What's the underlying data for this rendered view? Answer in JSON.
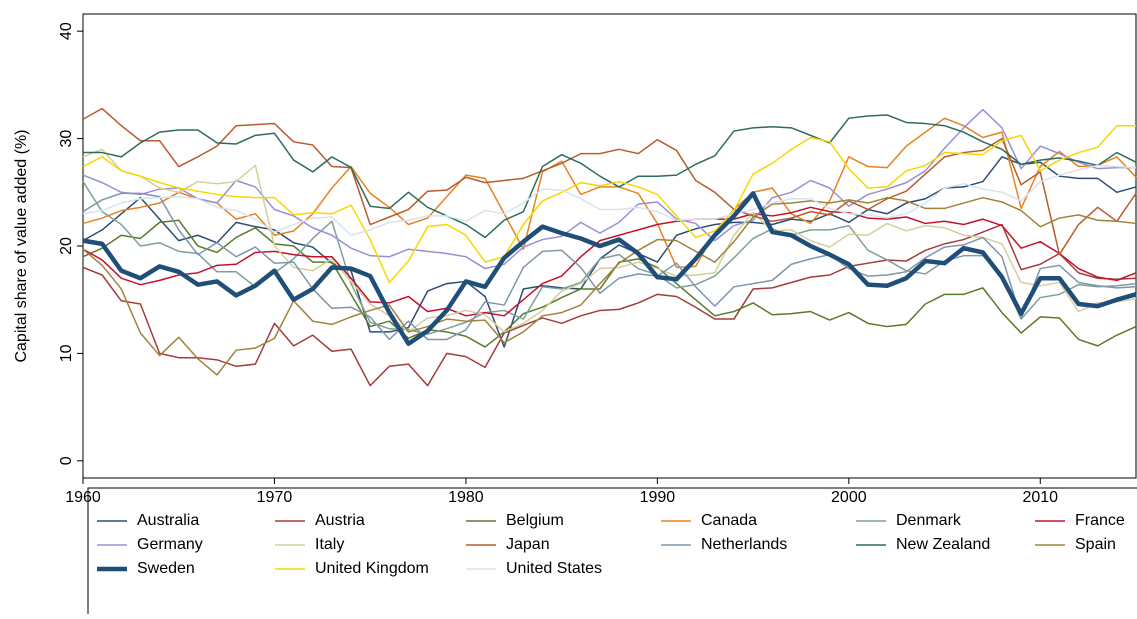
{
  "chart_data": {
    "type": "line",
    "y_label": "Capital share of value added (%)",
    "x": [
      1960,
      1961,
      1962,
      1963,
      1964,
      1965,
      1966,
      1967,
      1968,
      1969,
      1970,
      1971,
      1972,
      1973,
      1974,
      1975,
      1976,
      1977,
      1978,
      1979,
      1980,
      1981,
      1982,
      1983,
      1984,
      1985,
      1986,
      1987,
      1988,
      1989,
      1990,
      1991,
      1992,
      1993,
      1994,
      1995,
      1996,
      1997,
      1998,
      1999,
      2000,
      2001,
      2002,
      2003,
      2004,
      2005,
      2006,
      2007,
      2008,
      2009,
      2010,
      2011,
      2012,
      2013,
      2014,
      2015
    ],
    "xlim": [
      1960,
      2015
    ],
    "xticks": [
      1960,
      1970,
      1980,
      1990,
      2000,
      2010
    ],
    "ylim": [
      -1.6,
      41.6
    ],
    "yticks": [
      0,
      10,
      20,
      30,
      40
    ],
    "legend": "bottom",
    "series": [
      {
        "name": "Australia",
        "color": "#2a4d75",
        "width": 1.5,
        "values": [
          20.5,
          21.5,
          23.0,
          24.5,
          22.5,
          20.5,
          21.0,
          20.3,
          22.2,
          21.8,
          21.5,
          20.3,
          19.9,
          18.4,
          17.7,
          12.0,
          12.0,
          12.4,
          15.8,
          16.5,
          16.7,
          15.3,
          10.6,
          16.0,
          16.3,
          16.1,
          16.0,
          18.8,
          20.1,
          19.3,
          18.5,
          21.0,
          21.6,
          22.0,
          22.2,
          22.2,
          22.0,
          22.5,
          22.3,
          23.0,
          22.2,
          23.4,
          23.0,
          24.0,
          24.4,
          25.4,
          25.5,
          26.0,
          28.3,
          27.6,
          27.8,
          26.5,
          26.3,
          26.3,
          25.0,
          25.5
        ]
      },
      {
        "name": "Austria",
        "color": "#a53c3c",
        "width": 1.5,
        "values": [
          18.0,
          17.3,
          14.9,
          14.6,
          10.0,
          9.6,
          9.6,
          9.4,
          8.8,
          9.0,
          12.8,
          10.7,
          11.7,
          10.2,
          10.4,
          7.0,
          8.8,
          9.0,
          7.0,
          10.0,
          9.7,
          8.7,
          11.9,
          12.6,
          13.3,
          12.8,
          13.5,
          14.0,
          14.1,
          14.7,
          15.5,
          15.3,
          14.3,
          13.2,
          13.2,
          16.0,
          16.1,
          16.6,
          17.1,
          17.3,
          18.1,
          18.4,
          18.7,
          18.6,
          19.6,
          20.2,
          20.6,
          21.3,
          22.0,
          17.8,
          18.3,
          19.3,
          17.5,
          17.0,
          16.9,
          17.0
        ]
      },
      {
        "name": "Belgium",
        "color": "#5b7a2a",
        "width": 1.5,
        "values": [
          19.0,
          19.8,
          21.0,
          20.7,
          22.2,
          22.4,
          20.0,
          19.4,
          20.8,
          21.7,
          20.2,
          20.0,
          18.5,
          18.5,
          15.5,
          12.5,
          13.0,
          11.4,
          12.2,
          12.0,
          11.6,
          10.6,
          12.0,
          13.7,
          14.3,
          15.2,
          16.0,
          16.0,
          18.5,
          18.8,
          18.0,
          16.5,
          15.0,
          13.5,
          13.9,
          14.7,
          13.6,
          13.7,
          13.9,
          13.1,
          13.8,
          12.8,
          12.5,
          12.7,
          14.6,
          15.5,
          15.5,
          16.1,
          13.8,
          11.9,
          13.4,
          13.3,
          11.3,
          10.7,
          11.7,
          12.5
        ]
      },
      {
        "name": "Canada",
        "color": "#e8821e",
        "width": 1.5,
        "values": [
          22.1,
          22.6,
          23.3,
          23.6,
          24.0,
          25.0,
          24.4,
          24.0,
          22.5,
          23.0,
          21.0,
          21.4,
          23.0,
          25.4,
          27.4,
          24.9,
          23.6,
          22.0,
          22.6,
          24.6,
          26.6,
          26.3,
          23.0,
          19.7,
          26.9,
          27.9,
          24.8,
          25.5,
          25.5,
          24.9,
          22.1,
          18.0,
          18.1,
          21.2,
          23.4,
          25.0,
          25.4,
          23.0,
          22.1,
          24.2,
          28.3,
          27.4,
          27.3,
          29.3,
          30.6,
          31.9,
          31.2,
          30.1,
          30.6,
          23.5,
          27.4,
          28.8,
          27.4,
          27.5,
          28.3,
          26.4
        ]
      },
      {
        "name": "Denmark",
        "color": "#7f9f9a",
        "width": 1.5,
        "values": [
          26.0,
          23.2,
          22.0,
          20.0,
          20.3,
          19.5,
          19.3,
          17.6,
          17.6,
          16.2,
          17.5,
          18.8,
          20.7,
          22.3,
          16.5,
          12.9,
          12.3,
          12.2,
          11.8,
          12.3,
          12.9,
          13.8,
          14.0,
          13.2,
          16.2,
          16.0,
          16.6,
          18.8,
          19.2,
          17.9,
          17.3,
          16.1,
          16.4,
          17.2,
          18.9,
          20.7,
          21.6,
          21.0,
          21.5,
          21.5,
          21.9,
          19.6,
          18.7,
          17.7,
          17.4,
          18.6,
          19.1,
          19.1,
          17.1,
          13.2,
          15.2,
          15.5,
          16.4,
          16.2,
          16.3,
          16.5
        ]
      },
      {
        "name": "France",
        "color": "#c8102e",
        "width": 1.5,
        "values": [
          19.7,
          18.7,
          17.0,
          16.4,
          16.8,
          17.3,
          17.5,
          18.2,
          18.3,
          19.4,
          19.5,
          19.2,
          19.0,
          19.0,
          17.0,
          14.8,
          14.7,
          15.3,
          13.9,
          14.2,
          13.5,
          13.8,
          13.5,
          15.0,
          16.5,
          17.2,
          19.0,
          20.5,
          21.0,
          21.5,
          22.0,
          22.3,
          22.5,
          22.5,
          22.5,
          23.0,
          22.8,
          23.1,
          23.6,
          23.2,
          23.1,
          22.6,
          22.5,
          22.7,
          22.1,
          22.3,
          22.0,
          22.5,
          21.9,
          19.8,
          20.4,
          19.3,
          17.9,
          17.1,
          16.8,
          17.5
        ]
      },
      {
        "name": "Germany",
        "color": "#9a8fd6",
        "width": 1.5,
        "values": [
          26.6,
          25.9,
          25.0,
          24.8,
          25.3,
          25.4,
          24.4,
          24.0,
          26.1,
          25.5,
          23.4,
          22.8,
          21.7,
          21.0,
          19.8,
          19.1,
          19.0,
          19.7,
          19.5,
          19.3,
          19.0,
          17.9,
          18.3,
          19.9,
          20.6,
          20.9,
          22.2,
          21.2,
          22.2,
          23.9,
          24.1,
          22.5,
          22.1,
          20.5,
          21.9,
          22.4,
          24.5,
          25.0,
          26.1,
          25.4,
          23.7,
          24.8,
          25.3,
          25.9,
          27.0,
          29.1,
          31.0,
          32.7,
          31.0,
          27.2,
          29.3,
          28.6,
          27.8,
          27.2,
          27.3,
          27.3
        ]
      },
      {
        "name": "Italy",
        "color": "#d5cf9a",
        "width": 1.5,
        "values": [
          28.3,
          29.0,
          27.0,
          26.5,
          25.4,
          25.0,
          26.0,
          25.8,
          26.0,
          27.5,
          20.0,
          18.0,
          17.7,
          18.8,
          16.7,
          14.6,
          13.5,
          12.0,
          13.3,
          13.5,
          14.0,
          13.6,
          12.0,
          12.8,
          14.0,
          15.8,
          16.5,
          17.9,
          18.0,
          18.5,
          17.9,
          17.2,
          17.3,
          17.5,
          21.0,
          23.1,
          21.4,
          21.5,
          20.5,
          19.9,
          21.1,
          21.0,
          22.1,
          21.4,
          21.9,
          21.7,
          21.0,
          20.8,
          20.2,
          16.6,
          16.3,
          16.6,
          13.9,
          14.7,
          14.8,
          15.1
        ]
      },
      {
        "name": "Japan",
        "color": "#b85c2b",
        "width": 1.5,
        "values": [
          31.8,
          32.8,
          31.2,
          29.8,
          29.8,
          27.4,
          28.3,
          29.3,
          31.2,
          31.3,
          31.4,
          29.7,
          29.4,
          27.4,
          27.3,
          22.0,
          22.7,
          23.4,
          25.1,
          25.2,
          26.4,
          25.9,
          26.1,
          26.3,
          27.0,
          27.7,
          28.6,
          28.6,
          29.0,
          28.6,
          29.9,
          28.9,
          26.1,
          25.0,
          23.4,
          22.8,
          22.3,
          22.6,
          23.2,
          22.9,
          24.2,
          23.4,
          24.4,
          25.1,
          26.7,
          28.3,
          28.7,
          28.9,
          30.0,
          25.7,
          26.9,
          19.2,
          22.0,
          23.6,
          22.3,
          24.9
        ]
      },
      {
        "name": "Netherlands",
        "color": "#7f96ad",
        "width": 1.5,
        "values": [
          23.2,
          24.3,
          24.9,
          24.9,
          24.6,
          21.5,
          19.2,
          20.3,
          19.0,
          19.9,
          18.4,
          18.5,
          16.0,
          14.2,
          14.3,
          13.4,
          11.3,
          13.0,
          11.3,
          11.3,
          12.2,
          14.8,
          14.5,
          18.0,
          19.5,
          19.6,
          18.0,
          15.6,
          17.0,
          17.4,
          17.2,
          18.4,
          16.2,
          14.4,
          16.2,
          16.5,
          16.8,
          18.3,
          18.8,
          19.2,
          17.9,
          17.2,
          17.3,
          17.6,
          18.9,
          19.9,
          20.1,
          20.8,
          19.0,
          13.3,
          17.9,
          18.2,
          16.6,
          16.3,
          16.1,
          16.2
        ]
      },
      {
        "name": "New Zealand",
        "color": "#2e6b5e",
        "width": 1.5,
        "values": [
          28.7,
          28.7,
          28.3,
          29.6,
          30.6,
          30.8,
          30.8,
          29.6,
          29.5,
          30.3,
          30.5,
          28.0,
          26.9,
          28.3,
          27.3,
          23.7,
          23.5,
          25.0,
          23.6,
          22.8,
          22.0,
          20.8,
          22.4,
          23.2,
          27.4,
          28.5,
          27.7,
          26.5,
          25.5,
          26.5,
          26.5,
          26.6,
          27.6,
          28.4,
          30.7,
          31.0,
          31.1,
          31.0,
          30.3,
          29.6,
          31.9,
          32.1,
          32.2,
          31.5,
          31.4,
          31.2,
          30.6,
          29.7,
          29.0,
          27.6,
          28.0,
          28.2,
          27.9,
          27.5,
          28.7,
          27.8
        ]
      },
      {
        "name": "Spain",
        "color": "#a0823d",
        "width": 1.5,
        "values": [
          19.7,
          18.2,
          16.0,
          11.9,
          9.8,
          11.5,
          9.5,
          8.0,
          10.3,
          10.5,
          11.4,
          14.9,
          13.0,
          12.7,
          13.4,
          14.0,
          14.5,
          12.0,
          12.5,
          13.2,
          13.0,
          13.1,
          11.0,
          12.0,
          13.5,
          13.8,
          14.5,
          16.5,
          18.4,
          19.6,
          20.6,
          20.5,
          19.5,
          18.5,
          20.4,
          22.7,
          23.9,
          24.0,
          24.2,
          24.0,
          24.3,
          24.0,
          24.5,
          24.2,
          23.5,
          23.5,
          24.0,
          24.5,
          24.1,
          23.3,
          21.8,
          22.6,
          22.9,
          22.4,
          22.3,
          22.1
        ]
      },
      {
        "name": "Sweden",
        "color": "#1f4e79",
        "width": 4.5,
        "values": [
          20.5,
          20.2,
          17.7,
          17.0,
          18.1,
          17.6,
          16.4,
          16.7,
          15.4,
          16.3,
          17.7,
          15.0,
          16.0,
          18.0,
          17.9,
          17.2,
          13.8,
          10.9,
          12.1,
          14.0,
          16.7,
          16.2,
          18.9,
          20.4,
          21.8,
          21.2,
          20.7,
          20.0,
          20.6,
          19.3,
          17.1,
          16.9,
          18.8,
          21.0,
          22.8,
          24.9,
          21.3,
          21.0,
          20.0,
          19.2,
          18.3,
          16.4,
          16.3,
          17.0,
          18.6,
          18.4,
          19.8,
          19.4,
          17.1,
          13.7,
          17.0,
          17.0,
          14.6,
          14.4,
          15.0,
          15.5
        ]
      },
      {
        "name": "United Kingdom",
        "color": "#f5d800",
        "width": 1.5,
        "values": [
          27.4,
          28.3,
          27.0,
          26.5,
          25.9,
          25.4,
          25.1,
          24.8,
          24.6,
          24.5,
          24.5,
          22.9,
          23.1,
          23.0,
          23.8,
          20.6,
          16.6,
          18.6,
          21.8,
          22.0,
          21.0,
          18.5,
          19.0,
          22.0,
          24.2,
          25.0,
          25.9,
          25.6,
          26.0,
          25.5,
          24.8,
          22.8,
          20.8,
          21.4,
          23.3,
          26.7,
          27.7,
          29.0,
          30.1,
          29.7,
          27.2,
          25.4,
          25.5,
          27.0,
          27.5,
          28.7,
          28.6,
          28.5,
          29.8,
          30.3,
          27.0,
          28.0,
          28.7,
          29.2,
          31.2,
          31.2
        ]
      },
      {
        "name": "United States",
        "color": "#d6e3f0",
        "width": 1.5,
        "values": [
          23.0,
          23.3,
          24.0,
          24.4,
          24.5,
          24.6,
          24.4,
          23.6,
          23.3,
          22.5,
          21.3,
          22.0,
          22.6,
          22.7,
          21.0,
          21.5,
          22.2,
          22.4,
          22.8,
          22.8,
          22.3,
          23.3,
          23.0,
          24.0,
          25.3,
          25.2,
          24.4,
          23.4,
          23.4,
          23.6,
          23.2,
          22.4,
          22.5,
          22.5,
          23.0,
          23.4,
          24.0,
          24.4,
          24.4,
          23.5,
          23.0,
          22.9,
          22.6,
          23.0,
          24.0,
          25.4,
          25.8,
          25.3,
          25.0,
          24.2,
          26.0,
          26.6,
          27.1,
          27.5,
          27.4,
          27.3
        ]
      }
    ]
  }
}
